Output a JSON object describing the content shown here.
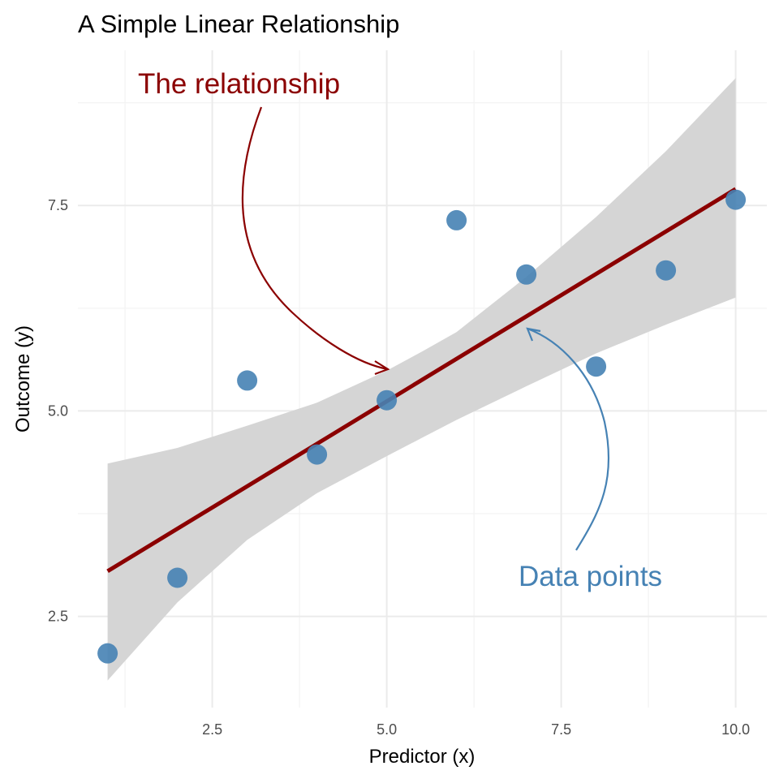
{
  "chart_data": {
    "type": "scatter",
    "title": "A Simple Linear Relationship",
    "xlabel": "Predictor (x)",
    "ylabel": "Outcome (y)",
    "xlim": [
      0.5,
      10.5
    ],
    "ylim": [
      1.4,
      9.1
    ],
    "x_ticks": [
      2.5,
      5.0,
      7.5,
      10.0
    ],
    "x_tick_labels": [
      "2.5",
      "5.0",
      "7.5",
      "10.0"
    ],
    "y_ticks": [
      2.5,
      5.0,
      7.5
    ],
    "y_tick_labels": [
      "2.5",
      "5.0",
      "7.5"
    ],
    "grid": true,
    "points": {
      "x": [
        1,
        2,
        3,
        4,
        5,
        6,
        7,
        8,
        9,
        10
      ],
      "y": [
        2.05,
        2.97,
        5.37,
        4.47,
        5.13,
        7.32,
        6.66,
        5.54,
        6.71,
        7.57
      ],
      "color": "#4682B4"
    },
    "fit_line": {
      "x": [
        1,
        10
      ],
      "y": [
        3.05,
        7.7
      ],
      "color": "#8B0000"
    },
    "confidence_band": {
      "x": [
        1,
        2,
        3,
        4,
        5,
        5.5,
        6,
        7,
        8,
        9,
        10
      ],
      "lower": [
        1.72,
        2.67,
        3.43,
        4.0,
        4.45,
        4.67,
        4.89,
        5.3,
        5.7,
        6.05,
        6.38
      ],
      "upper": [
        4.36,
        4.55,
        4.82,
        5.1,
        5.49,
        5.72,
        5.96,
        6.63,
        7.36,
        8.16,
        9.05
      ],
      "color": "#d5d5d5"
    },
    "annotations": [
      {
        "text": "The relationship",
        "color": "#8B0000"
      },
      {
        "text": "Data points",
        "color": "#4682B4"
      }
    ]
  }
}
